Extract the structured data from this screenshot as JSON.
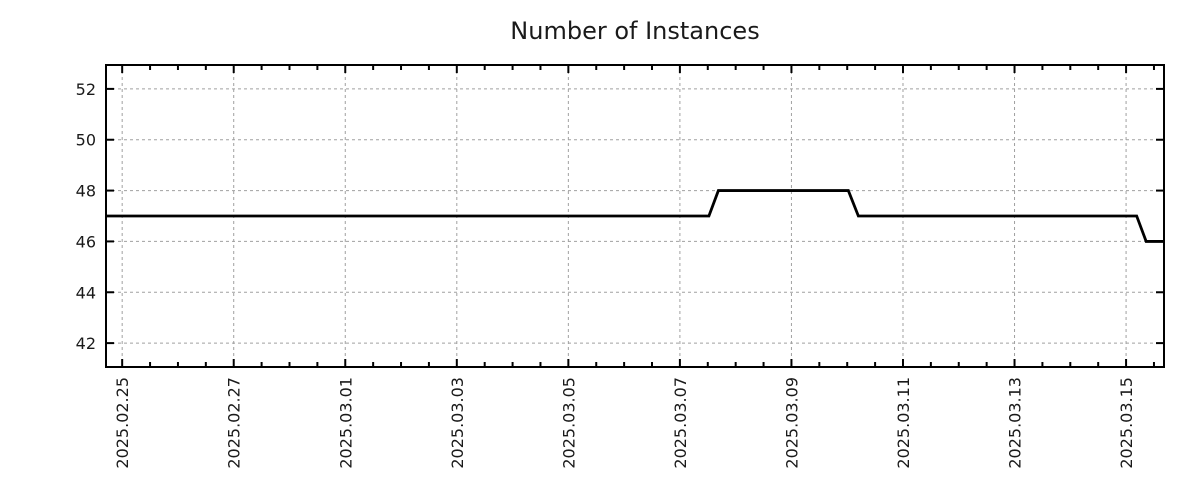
{
  "chart_data": {
    "type": "line",
    "title": "Number of Instances",
    "subtitle": "",
    "legend": "none",
    "grid": true,
    "colors": {
      "line": "#000000",
      "grid": "#a0a0a0",
      "axis": "#000000",
      "text": "#1a1a1a",
      "background": "#ffffff"
    },
    "x_axis": {
      "kind": "time",
      "label": "",
      "range_days_from_2025_02_25": [
        -0.29,
        18.68
      ],
      "major_tick_every_days": 2,
      "minor_tick_every_days": 0.5,
      "ticks": [
        {
          "day": 0,
          "label": "2025.02.25"
        },
        {
          "day": 2,
          "label": "2025.02.27"
        },
        {
          "day": 4,
          "label": "2025.03.01"
        },
        {
          "day": 6,
          "label": "2025.03.03"
        },
        {
          "day": 8,
          "label": "2025.03.05"
        },
        {
          "day": 10,
          "label": "2025.03.07"
        },
        {
          "day": 12,
          "label": "2025.03.09"
        },
        {
          "day": 14,
          "label": "2025.03.11"
        },
        {
          "day": 16,
          "label": "2025.03.13"
        },
        {
          "day": 18,
          "label": "2025.03.15"
        }
      ]
    },
    "y_axis": {
      "label": "",
      "range": [
        41.06,
        52.94
      ],
      "ticks": [
        42,
        44,
        46,
        48,
        50,
        52
      ]
    },
    "series": [
      {
        "name": "instances",
        "points": [
          {
            "time": "2025-02-24 ~17:00",
            "day": -0.29,
            "value": 47
          },
          {
            "time": "2025-03-07 ~12:30",
            "day": 10.52,
            "value": 47
          },
          {
            "time": "2025-03-07 ~16:30",
            "day": 10.69,
            "value": 48
          },
          {
            "time": "2025-03-10 ~00:30",
            "day": 13.02,
            "value": 48
          },
          {
            "time": "2025-03-10 ~04:45",
            "day": 13.2,
            "value": 47
          },
          {
            "time": "2025-03-15 ~04:30",
            "day": 18.19,
            "value": 47
          },
          {
            "time": "2025-03-15 ~08:30",
            "day": 18.36,
            "value": 46
          },
          {
            "time": "2025-03-15 ~16:20",
            "day": 18.68,
            "value": 46
          }
        ]
      }
    ]
  }
}
